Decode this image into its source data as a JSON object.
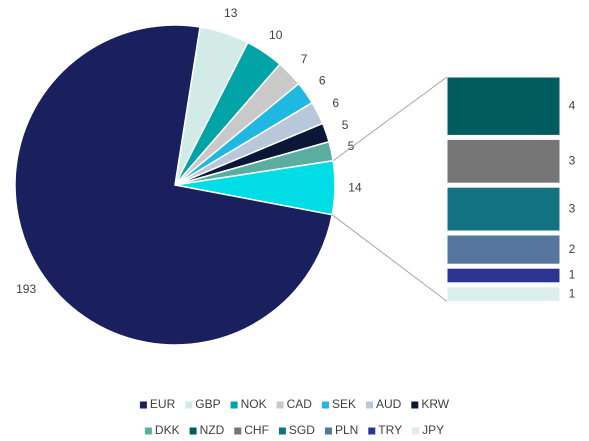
{
  "chart_data": {
    "type": "pie-of-bar",
    "pie": {
      "categories": [
        "GBP",
        "NOK",
        "CAD",
        "SEK",
        "AUD",
        "KRW",
        "DKK"
      ],
      "values": [
        13,
        10,
        7,
        6,
        6,
        5,
        5
      ],
      "colors": [
        "#d3ebe7",
        "#00a3a6",
        "#c9c9c9",
        "#1fb8e3",
        "#b8c7da",
        "#0b1736",
        "#5aaea0"
      ]
    },
    "main": {
      "category": "EUR",
      "value": 193,
      "color": "#1a1f5e"
    },
    "other": {
      "value": 14,
      "color": "#00dde6"
    },
    "bar": {
      "categories": [
        "NZD",
        "CHF",
        "SGD",
        "PLN",
        "TRY",
        "JPY"
      ],
      "values": [
        4,
        3,
        3,
        2,
        1,
        1
      ],
      "colors": [
        "#005c5e",
        "#767676",
        "#127282",
        "#5676a0",
        "#2b3591",
        "#dcefeb"
      ]
    }
  }
}
